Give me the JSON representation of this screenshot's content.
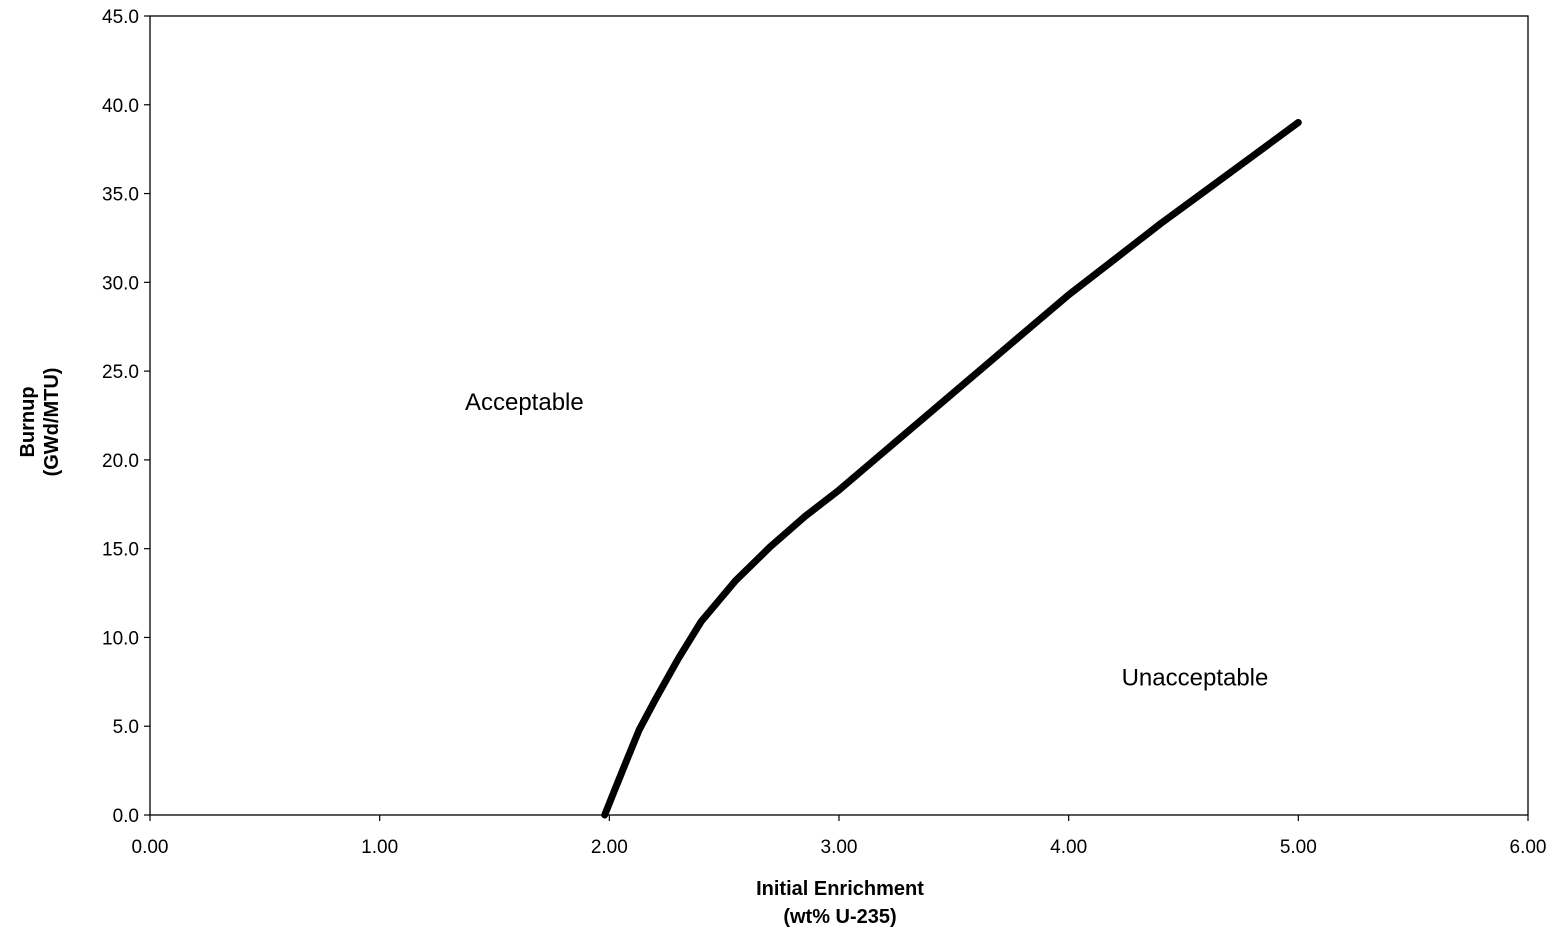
{
  "chart_data": {
    "type": "line",
    "title": "",
    "xlabel": {
      "line1": "Initial Enrichment",
      "line2": "(wt% U-235)"
    },
    "ylabel": {
      "line1": "Burnup",
      "line2": "(GWd/MTU)"
    },
    "xlim": [
      0,
      6
    ],
    "ylim": [
      0,
      45
    ],
    "x_ticks": [
      "0.00",
      "1.00",
      "2.00",
      "3.00",
      "4.00",
      "5.00",
      "6.00"
    ],
    "y_ticks": [
      "0.0",
      "5.0",
      "10.0",
      "15.0",
      "20.0",
      "25.0",
      "30.0",
      "35.0",
      "40.0",
      "45.0"
    ],
    "grid": false,
    "legend": "none",
    "annotations": [
      {
        "text": "Acceptable",
        "x": 1.63,
        "y": 22.8
      },
      {
        "text": "Unacceptable",
        "x": 4.55,
        "y": 7.3
      }
    ],
    "series": [
      {
        "color": "#000000",
        "x": [
          1.98,
          2.02,
          2.07,
          2.13,
          2.2,
          2.3,
          2.4,
          2.55,
          2.7,
          2.85,
          3.0,
          3.2,
          3.4,
          3.6,
          3.8,
          4.0,
          4.2,
          4.4,
          4.6,
          4.8,
          5.0
        ],
        "y": [
          0.0,
          1.3,
          2.9,
          4.8,
          6.5,
          8.8,
          10.9,
          13.2,
          15.1,
          16.8,
          18.3,
          20.5,
          22.7,
          24.9,
          27.1,
          29.3,
          31.3,
          33.3,
          35.2,
          37.1,
          39.0
        ]
      }
    ]
  }
}
